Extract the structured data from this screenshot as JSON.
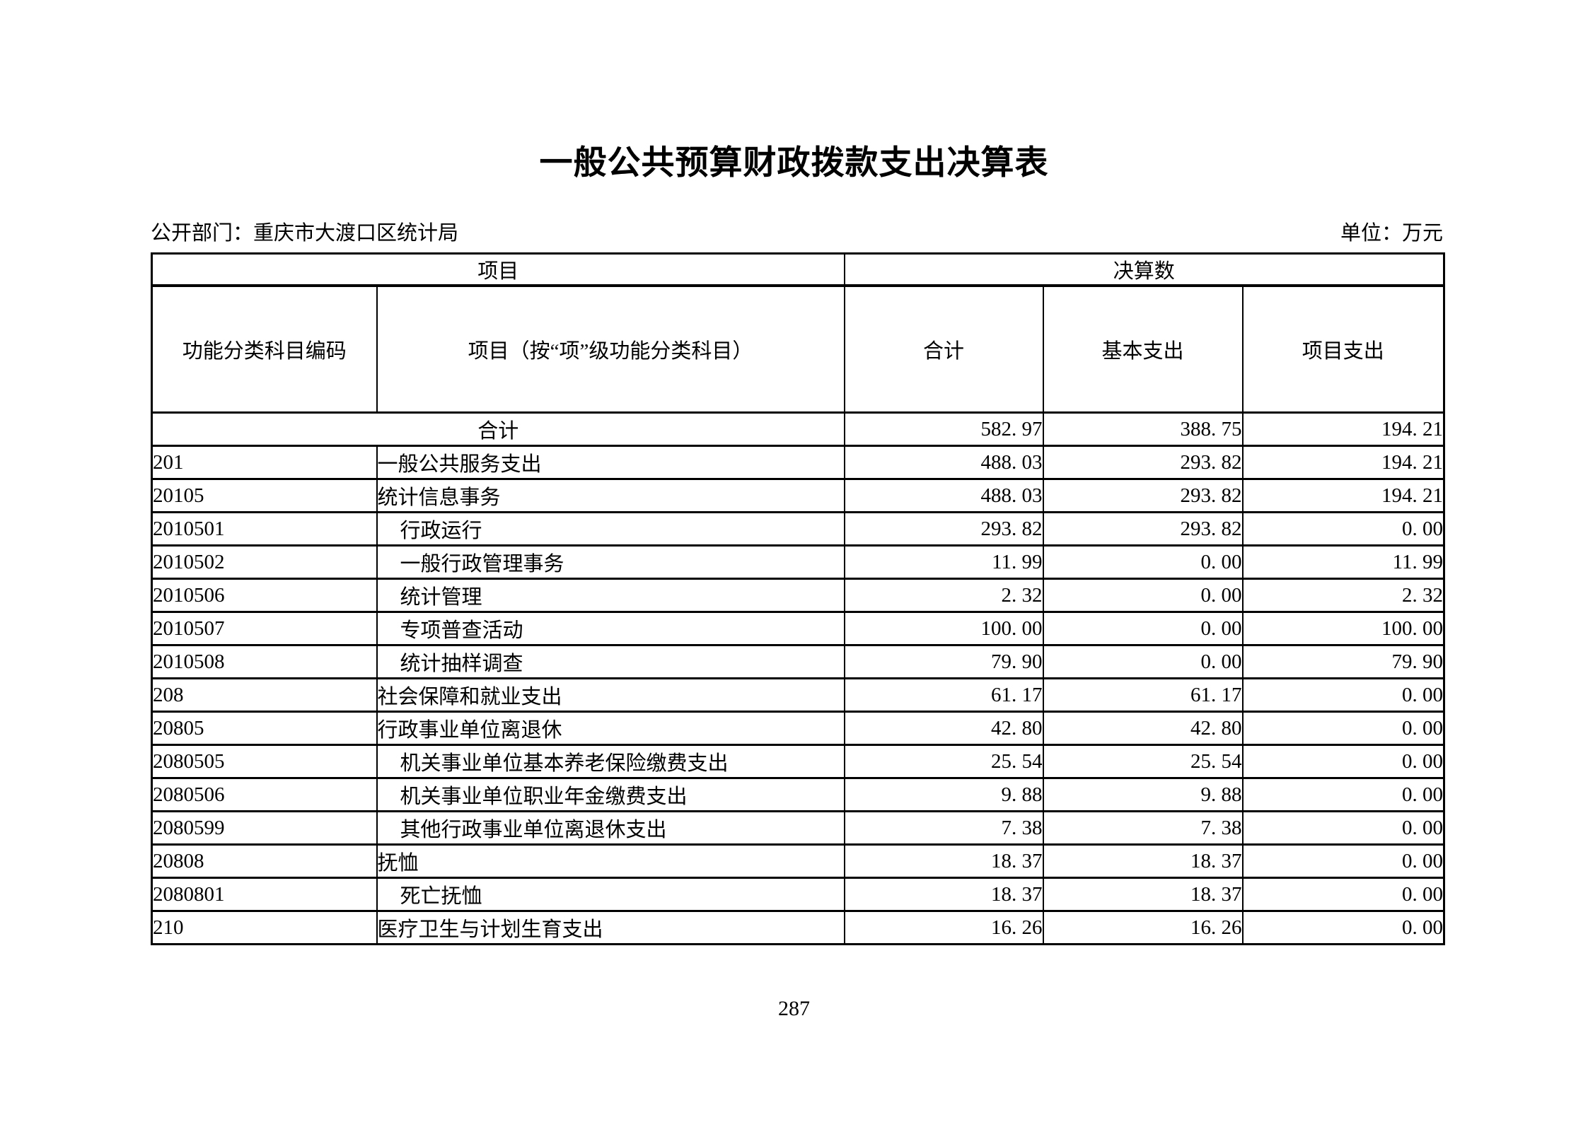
{
  "title": "一般公共预算财政拨款支出决算表",
  "meta": {
    "department": "公开部门：重庆市大渡口区统计局",
    "unit": "单位：万元"
  },
  "table": {
    "header_row1": [
      "项目",
      "决算数"
    ],
    "header_row2": [
      "功能分类科目编码",
      "项目（按“项”级功能分类科目）",
      "合计",
      "基本支出",
      "项目支出"
    ],
    "rows": [
      {
        "code": "",
        "name": "合计",
        "merged": true,
        "indent": 0,
        "total": "582. 97",
        "basic": "388. 75",
        "project": "194. 21"
      },
      {
        "code": "201",
        "name": "一般公共服务支出",
        "merged": false,
        "indent": 0,
        "total": "488. 03",
        "basic": "293. 82",
        "project": "194. 21"
      },
      {
        "code": "20105",
        "name": "统计信息事务",
        "merged": false,
        "indent": 0,
        "total": "488. 03",
        "basic": "293. 82",
        "project": "194. 21"
      },
      {
        "code": "2010501",
        "name": "行政运行",
        "merged": false,
        "indent": 1,
        "total": "293. 82",
        "basic": "293. 82",
        "project": "0. 00"
      },
      {
        "code": "2010502",
        "name": "一般行政管理事务",
        "merged": false,
        "indent": 1,
        "total": "11. 99",
        "basic": "0. 00",
        "project": "11. 99"
      },
      {
        "code": "2010506",
        "name": "统计管理",
        "merged": false,
        "indent": 1,
        "total": "2. 32",
        "basic": "0. 00",
        "project": "2. 32"
      },
      {
        "code": "2010507",
        "name": "专项普查活动",
        "merged": false,
        "indent": 1,
        "total": "100. 00",
        "basic": "0. 00",
        "project": "100. 00"
      },
      {
        "code": "2010508",
        "name": "统计抽样调查",
        "merged": false,
        "indent": 1,
        "total": "79. 90",
        "basic": "0. 00",
        "project": "79. 90"
      },
      {
        "code": "208",
        "name": "社会保障和就业支出",
        "merged": false,
        "indent": 0,
        "total": "61. 17",
        "basic": "61. 17",
        "project": "0. 00"
      },
      {
        "code": "20805",
        "name": "行政事业单位离退休",
        "merged": false,
        "indent": 0,
        "total": "42. 80",
        "basic": "42. 80",
        "project": "0. 00"
      },
      {
        "code": "2080505",
        "name": "机关事业单位基本养老保险缴费支出",
        "merged": false,
        "indent": 1,
        "total": "25. 54",
        "basic": "25. 54",
        "project": "0. 00"
      },
      {
        "code": "2080506",
        "name": "机关事业单位职业年金缴费支出",
        "merged": false,
        "indent": 1,
        "total": "9. 88",
        "basic": "9. 88",
        "project": "0. 00"
      },
      {
        "code": "2080599",
        "name": "其他行政事业单位离退休支出",
        "merged": false,
        "indent": 1,
        "total": "7. 38",
        "basic": "7. 38",
        "project": "0. 00"
      },
      {
        "code": "20808",
        "name": "抚恤",
        "merged": false,
        "indent": 0,
        "total": "18. 37",
        "basic": "18. 37",
        "project": "0. 00"
      },
      {
        "code": "2080801",
        "name": "死亡抚恤",
        "merged": false,
        "indent": 1,
        "total": "18. 37",
        "basic": "18. 37",
        "project": "0. 00"
      },
      {
        "code": "210",
        "name": "医疗卫生与计划生育支出",
        "merged": false,
        "indent": 0,
        "total": "16. 26",
        "basic": "16. 26",
        "project": "0. 00"
      }
    ]
  },
  "page_number": "287"
}
